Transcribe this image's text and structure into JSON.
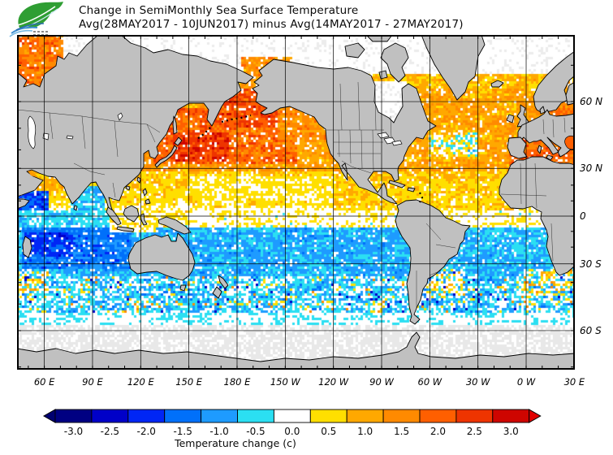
{
  "header": {
    "title_line1": "Change in SemiMonthly Sea Surface Temperature",
    "title_line2": "Avg(28MAY2017 - 10JUN2017) minus Avg(14MAY2017 - 27MAY2017)",
    "logo": {
      "name": "leaf-wave-logo",
      "leaf_color": "#2f9e33",
      "wave_color": "#3f8fd2"
    }
  },
  "map": {
    "lat_labels": [
      {
        "text": "60 N",
        "lat": 60
      },
      {
        "text": "30 N",
        "lat": 30
      },
      {
        "text": "0",
        "lat": 0
      },
      {
        "text": "30 S",
        "lat": -30
      },
      {
        "text": "60 S",
        "lat": -60
      }
    ],
    "lon_labels": [
      {
        "text": "60 E",
        "lon": 60
      },
      {
        "text": "90 E",
        "lon": 90
      },
      {
        "text": "120 E",
        "lon": 120
      },
      {
        "text": "150 E",
        "lon": 150
      },
      {
        "text": "180 E",
        "lon": 180
      },
      {
        "text": "150 W",
        "lon": 210
      },
      {
        "text": "120 W",
        "lon": 240
      },
      {
        "text": "90 W",
        "lon": 270
      },
      {
        "text": "60 W",
        "lon": 300
      },
      {
        "text": "30 W",
        "lon": 330
      },
      {
        "text": "0 W",
        "lon": 360
      },
      {
        "text": "30 E",
        "lon": 390
      }
    ],
    "land_color": "#c0c0c0",
    "coast_color": "#000000",
    "ice_color": "#e8e8e8"
  },
  "colorbar": {
    "caption": "Temperature change  (c)",
    "arrow_left_color": "#000070",
    "arrow_right_color": "#e00000",
    "segments": [
      {
        "label": "-3.0",
        "color": "#000082"
      },
      {
        "label": "-2.5",
        "color": "#0000c8"
      },
      {
        "label": "-2.0",
        "color": "#0026f5"
      },
      {
        "label": "-1.5",
        "color": "#0070fa"
      },
      {
        "label": "-1.0",
        "color": "#1e9bff"
      },
      {
        "label": "-0.5",
        "color": "#2bdff2"
      },
      {
        "label": "0.0",
        "color": "#ffffff"
      },
      {
        "label": "0.5",
        "color": "#ffdf00"
      },
      {
        "label": "1.0",
        "color": "#ffa800"
      },
      {
        "label": "1.5",
        "color": "#ff8a00"
      },
      {
        "label": "2.0",
        "color": "#ff5f00"
      },
      {
        "label": "2.5",
        "color": "#ee3400"
      },
      {
        "label": "3.0",
        "color": "#ce0500"
      }
    ]
  },
  "chart_data": {
    "type": "heatmap",
    "title": "Change in SemiMonthly Sea Surface Temperature",
    "subtitle": "Avg(28MAY2017 - 10JUN2017) minus Avg(14MAY2017 - 27MAY2017)",
    "units": "c",
    "scale": {
      "min": -3.0,
      "max": 3.0,
      "step": 0.5
    },
    "lon_range": [
      43,
      392
    ],
    "lat_range": [
      -70,
      75
    ],
    "grid": {
      "lon_step": 30,
      "lat_step": 30
    },
    "lat_profile": [
      {
        "lat": [
          62,
          76
        ],
        "anomaly": 0.8,
        "spread": 1.0
      },
      {
        "lat": [
          28,
          62
        ],
        "anomaly": 1.2,
        "spread": 1.0
      },
      {
        "lat": [
          18,
          28
        ],
        "anomaly": 0.7,
        "spread": 0.9
      },
      {
        "lat": [
          5,
          18
        ],
        "anomaly": 0.45,
        "spread": 0.85
      },
      {
        "lat": [
          -8,
          5
        ],
        "anomaly": 0.15,
        "spread": 0.8
      },
      {
        "lat": [
          -20,
          -8
        ],
        "anomaly": -0.7,
        "spread": 0.9
      },
      {
        "lat": [
          -36,
          -20
        ],
        "anomaly": -0.85,
        "spread": 0.95
      },
      {
        "lat": [
          -52,
          -36
        ],
        "anomaly": -0.6,
        "spread": 1.1
      },
      {
        "lat": [
          -58,
          -52
        ],
        "anomaly": -0.3,
        "spread": 0.6
      },
      {
        "lat": [
          -90,
          -58
        ],
        "type": "ice"
      }
    ],
    "regions": [
      {
        "name": "arctic-no-data",
        "lon": [
          43,
          392
        ],
        "lat": [
          68,
          90
        ],
        "type": "nodata"
      },
      {
        "name": "barents-sea-warm",
        "lon": [
          43,
          72
        ],
        "lat": [
          64,
          76
        ],
        "anomaly": 1.7,
        "spread": 1.2
      },
      {
        "name": "chukchi-sea-warm",
        "lon": [
          183,
          215
        ],
        "lat": [
          64,
          72
        ],
        "anomaly": 1.3,
        "spread": 1.1
      },
      {
        "name": "hudson-bay-no-data",
        "lon": [
          262,
          286
        ],
        "lat": [
          50,
          66
        ],
        "type": "nodata"
      },
      {
        "name": "nw-pacific-warm",
        "lon": [
          128,
          218
        ],
        "lat": [
          32,
          58
        ],
        "anomaly": 1.9,
        "spread": 1.3
      },
      {
        "name": "kuroshio-extension-hot",
        "lon": [
          140,
          175
        ],
        "lat": [
          34,
          48
        ],
        "anomaly": 2.5,
        "spread": 1.1
      },
      {
        "name": "bering-sea-hot",
        "lon": [
          165,
          205
        ],
        "lat": [
          50,
          64
        ],
        "anomaly": 2.2,
        "spread": 1.2
      },
      {
        "name": "gulf-of-alaska-warm",
        "lon": [
          205,
          238
        ],
        "lat": [
          45,
          62
        ],
        "anomaly": 1.4,
        "spread": 1.0
      },
      {
        "name": "central-pacific-neutral",
        "lon": [
          152,
          240
        ],
        "lat": [
          12,
          26
        ],
        "anomaly": 0.35,
        "spread": 0.7
      },
      {
        "name": "east-pacific-tropics",
        "lon": [
          240,
          280
        ],
        "lat": [
          4,
          18
        ],
        "anomaly": 0.65,
        "spread": 0.7
      },
      {
        "name": "north-atlantic-warm",
        "lon": [
          285,
          360
        ],
        "lat": [
          34,
          64
        ],
        "anomaly": 1.1,
        "spread": 1.1
      },
      {
        "name": "newfoundland-mixed",
        "lon": [
          300,
          330
        ],
        "lat": [
          36,
          48
        ],
        "anomaly": 0.2,
        "spread": 1.9
      },
      {
        "name": "mediterranean-hot",
        "lon": [
          350,
          392
        ],
        "lat": [
          30,
          46
        ],
        "anomaly": 1.9,
        "spread": 0.9
      },
      {
        "name": "baltic-hot",
        "lon": [
          373,
          392
        ],
        "lat": [
          53,
          61
        ],
        "anomaly": 1.6,
        "spread": 1.0
      },
      {
        "name": "tropical-atlantic",
        "lon": [
          280,
          360
        ],
        "lat": [
          4,
          24
        ],
        "anomaly": 0.6,
        "spread": 0.8
      },
      {
        "name": "arabian-sea-cold",
        "lon": [
          43,
          63
        ],
        "lat": [
          0,
          16
        ],
        "anomaly": -1.8,
        "spread": 1.0
      },
      {
        "name": "north-arabian-warm-strip",
        "lon": [
          55,
          72
        ],
        "lat": [
          17,
          26
        ],
        "anomaly": 0.9,
        "spread": 0.8
      },
      {
        "name": "bay-of-bengal-cool",
        "lon": [
          77,
          98
        ],
        "lat": [
          4,
          20
        ],
        "anomaly": -0.7,
        "spread": 1.1
      },
      {
        "name": "equatorial-indian-cool",
        "lon": [
          43,
          103
        ],
        "lat": [
          -8,
          4
        ],
        "anomaly": -0.6,
        "spread": 0.9
      },
      {
        "name": "south-indian-cold-band",
        "lon": [
          46,
          115
        ],
        "lat": [
          -33,
          -8
        ],
        "anomaly": -1.4,
        "spread": 1.0
      },
      {
        "name": "sw-indian-coldest",
        "lon": [
          48,
          78
        ],
        "lat": [
          -26,
          -10
        ],
        "anomaly": -1.9,
        "spread": 0.9
      },
      {
        "name": "indonesian-seas-mixed",
        "lon": [
          100,
          150
        ],
        "lat": [
          -10,
          8
        ],
        "anomaly": 0.3,
        "spread": 1.0
      },
      {
        "name": "south-pacific-cool",
        "lon": [
          130,
          292
        ],
        "lat": [
          -46,
          -8
        ],
        "anomaly": -0.85,
        "spread": 0.9
      },
      {
        "name": "south-atlantic-cool",
        "lon": [
          295,
          365
        ],
        "lat": [
          -46,
          -14
        ],
        "anomaly": -0.8,
        "spread": 0.9
      },
      {
        "name": "southern-ocean-speckle",
        "lon": [
          43,
          392
        ],
        "lat": [
          -55,
          -37
        ],
        "anomaly": -0.45,
        "spread": 1.8,
        "speckle": true
      },
      {
        "name": "argentine-shelf-mixed",
        "lon": [
          295,
          322
        ],
        "lat": [
          -48,
          -33
        ],
        "anomaly": -0.1,
        "spread": 2.4,
        "speckle": true
      },
      {
        "name": "agulhas-mixed",
        "lon": [
          358,
          392
        ],
        "lat": [
          -46,
          -33
        ],
        "anomaly": 0.1,
        "spread": 2.4,
        "speckle": true
      },
      {
        "name": "agulhas-mixed-west",
        "lon": [
          43,
          62
        ],
        "lat": [
          -45,
          -34
        ],
        "anomaly": 0.0,
        "spread": 2.2,
        "speckle": true
      },
      {
        "name": "antarctic-ice-edge",
        "lon": [
          43,
          392
        ],
        "lat": [
          -58,
          -54
        ],
        "anomaly": -0.2,
        "spread": 0.5
      }
    ]
  }
}
